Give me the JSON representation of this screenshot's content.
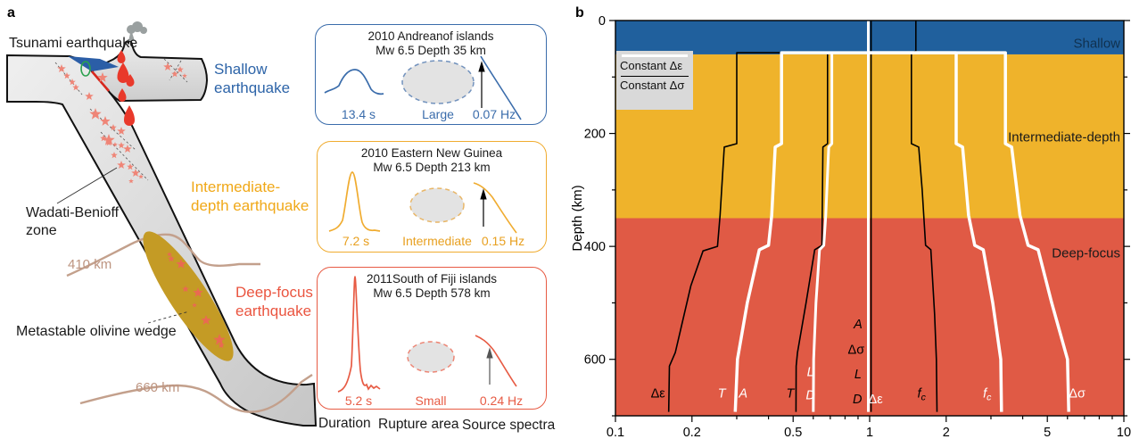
{
  "panel_a": {
    "label": "a",
    "labels": {
      "tsunami": "Tsunami earthquake",
      "shallow": [
        "Shallow",
        "earthquake"
      ],
      "intermediate": [
        "Intermediate-",
        "depth earthquake"
      ],
      "deep": [
        "Deep-focus",
        "earthquake"
      ],
      "wadati": [
        "Wadati-Benioff",
        "zone"
      ],
      "olivine": "Metastable olivine wedge",
      "d410": "410 km",
      "d660": "660 km"
    },
    "boxes": [
      {
        "title1": "2010 Andreanof islands",
        "title2": "Mw 6.5  Depth 35 km",
        "duration": "13.4 s",
        "area": "Large",
        "freq": "0.07 Hz",
        "accent": "#3a6cab",
        "ellipse_stroke": "#7292bd"
      },
      {
        "title1": "2010 Eastern New Guinea",
        "title2": "Mw 6.5 Depth 213 km",
        "duration": "7.2 s",
        "area": "Intermediate",
        "freq": "0.15 Hz",
        "accent": "#f0ac30",
        "ellipse_stroke": "#e8b667"
      },
      {
        "title1": "2011South of Fiji islands",
        "title2": "Mw 6.5 Depth 578 km",
        "duration": "5.2 s",
        "area": "Small",
        "freq": "0.24 Hz",
        "accent": "#e75b44",
        "ellipse_stroke": "#ec8574"
      }
    ],
    "caption": [
      "Duration",
      "Rupture area",
      "Source spectra"
    ],
    "colors": {
      "star_salmon": "#ef8577",
      "star_deep": "#e96a52",
      "magma": "#e9392b",
      "ocean": "#2b5ea7",
      "green_ring": "#2ca14e",
      "tan": "#c3a08c",
      "olivine_wedge": "#c49b25",
      "smoke": "#9aa0a0",
      "megathrust": "#d8281e"
    },
    "stars": [
      [
        69,
        77,
        5,
        0
      ],
      [
        75,
        85,
        4,
        0
      ],
      [
        81,
        92,
        4,
        0
      ],
      [
        85,
        98,
        4,
        0
      ],
      [
        115,
        87,
        6,
        0
      ],
      [
        100,
        108,
        5,
        0
      ],
      [
        107,
        128,
        7,
        0
      ],
      [
        122,
        157,
        7,
        0
      ],
      [
        188,
        75,
        5,
        0
      ],
      [
        196,
        83,
        4,
        0
      ],
      [
        202,
        78,
        4,
        0
      ],
      [
        207,
        85,
        3,
        0
      ],
      [
        118,
        136,
        6,
        0
      ],
      [
        127,
        143,
        4,
        0
      ],
      [
        136,
        147,
        5,
        0
      ],
      [
        116,
        155,
        4,
        0
      ],
      [
        122,
        160,
        4,
        0
      ],
      [
        129,
        162,
        3,
        0
      ],
      [
        136,
        163,
        4,
        0
      ],
      [
        143,
        167,
        5,
        0
      ],
      [
        128,
        174,
        4,
        0
      ],
      [
        136,
        185,
        5,
        0
      ],
      [
        146,
        187,
        4,
        0
      ],
      [
        152,
        194,
        5,
        0
      ],
      [
        158,
        198,
        3,
        0
      ],
      [
        147,
        203,
        3,
        0
      ],
      [
        190,
        285,
        3,
        1
      ],
      [
        192,
        290,
        4,
        1
      ],
      [
        203,
        296,
        6,
        1
      ],
      [
        208,
        324,
        4,
        1
      ],
      [
        222,
        328,
        6,
        1
      ],
      [
        218,
        342,
        3,
        1
      ],
      [
        231,
        359,
        6,
        1
      ],
      [
        246,
        381,
        7,
        1
      ],
      [
        248,
        387,
        4,
        1
      ]
    ],
    "magma": [
      [
        136,
        56,
        9,
        15
      ],
      [
        138,
        70,
        13,
        23
      ],
      [
        146,
        83,
        9,
        14
      ],
      [
        137,
        99,
        9,
        15
      ],
      [
        145,
        118,
        12,
        23
      ]
    ]
  },
  "panel_b": {
    "label": "b",
    "ylabel": "Depth (km)",
    "legend": [
      {
        "line": "white",
        "label": "Constant Δε"
      },
      {
        "line": "black",
        "label": "Constant Δσ"
      }
    ]
  },
  "chart_data": {
    "type": "line",
    "title": "Scaling of source parameters with depth relative to surface values",
    "xlabel": "",
    "ylabel": "Depth (km)",
    "xscale": "log",
    "xlim": [
      0.1,
      10
    ],
    "ylim": [
      0,
      700
    ],
    "y_inverted": true,
    "xticks": [
      0.1,
      0.2,
      0.5,
      1,
      2,
      5,
      10
    ],
    "xtick_labels": [
      "0.1",
      "0.2",
      "0.5",
      "1",
      "2",
      "5",
      "10"
    ],
    "xminor": [
      0.3,
      0.4,
      0.6,
      0.7,
      0.8,
      0.9,
      3,
      4,
      6,
      7,
      8,
      9
    ],
    "yticks": [
      0,
      200,
      400,
      600
    ],
    "ytick_labels": [
      "0",
      "200",
      "400",
      "600"
    ],
    "yminor": [
      100,
      300,
      500,
      700
    ],
    "zones": [
      {
        "name": "Shallow",
        "from": 0,
        "to": 60,
        "color": "#20609d"
      },
      {
        "name": "Intermediate-depth",
        "from": 60,
        "to": 350,
        "color": "#efb32b"
      },
      {
        "name": "Deep-focus",
        "from": 350,
        "to": 700,
        "color": "#e05a45"
      }
    ],
    "zone_labels": [
      {
        "text": "Shallow",
        "depth": 40,
        "color": "#10314f"
      },
      {
        "text": "Intermediate-depth",
        "depth": 206,
        "color": "#1a1a1a"
      },
      {
        "text": "Deep-focus",
        "depth": 412,
        "color": "#1a1a1a"
      }
    ],
    "legend": [
      {
        "line": "white",
        "label": "Constant Δε"
      },
      {
        "line": "black",
        "label": "Constant Δσ"
      }
    ],
    "series": [
      {
        "id": "de-constant-sigma",
        "param": "Δε",
        "model": "Constant Δσ",
        "color": "#000000",
        "w": 1.6,
        "lines": [
          [
            [
              1.0,
              57
            ],
            [
              0.3,
              57
            ],
            [
              0.3,
              218
            ],
            [
              0.268,
              224
            ],
            [
              0.258,
              345
            ],
            [
              0.252,
              400
            ],
            [
              0.221,
              408
            ],
            [
              0.198,
              470
            ],
            [
              0.172,
              588
            ],
            [
              0.163,
              612
            ],
            [
              0.162,
              693
            ]
          ]
        ]
      },
      {
        "id": "t-constant-sigma",
        "param": "T",
        "model": "Constant Δσ",
        "color": "#000000",
        "w": 1.6,
        "lines": [
          [
            [
              1.0,
              57
            ],
            [
              0.683,
              57
            ],
            [
              0.683,
              218
            ],
            [
              0.655,
              224
            ],
            [
              0.649,
              398
            ],
            [
              0.608,
              406
            ],
            [
              0.562,
              500
            ],
            [
              0.52,
              588
            ],
            [
              0.514,
              612
            ],
            [
              0.513,
              693
            ]
          ]
        ]
      },
      {
        "id": "fc-constant-sigma",
        "param": "fc",
        "model": "Constant Δσ",
        "color": "#000000",
        "w": 1.6,
        "lines": [
          [
            [
              1.52,
              0
            ],
            [
              1.52,
              54
            ],
            [
              1.46,
              58
            ],
            [
              1.46,
              218
            ],
            [
              1.56,
              224
            ],
            [
              1.61,
              300
            ],
            [
              1.66,
              398
            ],
            [
              1.74,
              406
            ],
            [
              1.8,
              520
            ],
            [
              1.83,
              600
            ],
            [
              1.84,
              693
            ]
          ],
          [
            [
              1.0,
              58
            ],
            [
              1.46,
              58
            ]
          ]
        ]
      },
      {
        "id": "unity-constant-sigma",
        "param": "A, Δσ, L, D",
        "model": "Constant Δσ",
        "color": "#000000",
        "w": 1.6,
        "lines": [
          [
            [
              1.013,
              0
            ],
            [
              1.013,
              693
            ]
          ]
        ]
      },
      {
        "id": "unity-constant-eps",
        "param": "Δε",
        "model": "Constant Δε",
        "color": "#ffffff",
        "w": 3,
        "lines": [
          [
            [
              0.988,
              0
            ],
            [
              0.988,
              693
            ]
          ]
        ]
      },
      {
        "id": "ta-constant-eps",
        "param": "T, A",
        "model": "Constant Δε",
        "color": "#ffffff",
        "w": 3.5,
        "lines": [
          [
            [
              1.0,
              57
            ],
            [
              0.45,
              57
            ],
            [
              0.45,
              218
            ],
            [
              0.425,
              224
            ],
            [
              0.412,
              345
            ],
            [
              0.4,
              398
            ],
            [
              0.368,
              406
            ],
            [
              0.33,
              500
            ],
            [
              0.302,
              600
            ],
            [
              0.296,
              693
            ]
          ]
        ]
      },
      {
        "id": "ld-constant-eps",
        "param": "L, D",
        "model": "Constant Δε",
        "color": "#ffffff",
        "w": 3,
        "lines": [
          [
            [
              1.0,
              57
            ],
            [
              0.71,
              57
            ],
            [
              0.71,
              218
            ],
            [
              0.69,
              224
            ],
            [
              0.672,
              345
            ],
            [
              0.66,
              398
            ],
            [
              0.635,
              406
            ],
            [
              0.615,
              500
            ],
            [
              0.602,
              600
            ],
            [
              0.6,
              693
            ]
          ]
        ]
      },
      {
        "id": "fc-constant-eps",
        "param": "fc",
        "model": "Constant Δε",
        "color": "#ffffff",
        "w": 3.5,
        "lines": [
          [
            [
              1.0,
              57
            ],
            [
              2.19,
              57
            ],
            [
              2.19,
              218
            ],
            [
              2.32,
              224
            ],
            [
              2.45,
              345
            ],
            [
              2.59,
              398
            ],
            [
              2.8,
              406
            ],
            [
              3.05,
              500
            ],
            [
              3.28,
              600
            ],
            [
              3.3,
              693
            ]
          ]
        ]
      },
      {
        "id": "ds-constant-eps",
        "param": "Δσ",
        "model": "Constant Δε",
        "color": "#ffffff",
        "w": 3.5,
        "lines": [
          [
            [
              1.0,
              57
            ],
            [
              3.42,
              57
            ],
            [
              3.42,
              218
            ],
            [
              3.62,
              224
            ],
            [
              3.9,
              345
            ],
            [
              4.2,
              398
            ],
            [
              4.6,
              406
            ],
            [
              5.2,
              500
            ],
            [
              6.0,
              600
            ],
            [
              6.07,
              693
            ]
          ]
        ]
      }
    ],
    "curve_labels": [
      {
        "text": "Δε",
        "v": 0.147,
        "depth": 660,
        "color": "#000000"
      },
      {
        "text": "T",
        "v": 0.262,
        "depth": 660,
        "color": "#ffffff",
        "italic": true
      },
      {
        "text": "A",
        "v": 0.318,
        "depth": 660,
        "color": "#ffffff",
        "italic": true
      },
      {
        "text": "T",
        "v": 0.487,
        "depth": 660,
        "color": "#000000",
        "italic": true
      },
      {
        "text": "L",
        "v": 0.585,
        "depth": 622,
        "color": "#ffffff",
        "italic": true
      },
      {
        "text": "D",
        "v": 0.585,
        "depth": 663,
        "color": "#ffffff",
        "italic": true
      },
      {
        "text": "A",
        "v": 0.9,
        "depth": 537,
        "color": "#000000",
        "italic": true
      },
      {
        "text": "Δσ",
        "v": 0.885,
        "depth": 582,
        "color": "#000000"
      },
      {
        "text": "L",
        "v": 0.9,
        "depth": 626,
        "color": "#000000",
        "italic": true
      },
      {
        "text": "D",
        "v": 0.895,
        "depth": 670,
        "color": "#000000",
        "italic": true
      },
      {
        "text": "Δε",
        "v": 1.055,
        "depth": 670,
        "color": "#ffffff"
      },
      {
        "text": "f",
        "sub": "c",
        "v": 1.6,
        "depth": 660,
        "color": "#000000",
        "italic": true
      },
      {
        "text": "f",
        "sub": "c",
        "v": 2.9,
        "depth": 660,
        "color": "#ffffff",
        "italic": true
      },
      {
        "text": "Δσ",
        "v": 6.55,
        "depth": 660,
        "color": "#ffffff"
      }
    ]
  }
}
